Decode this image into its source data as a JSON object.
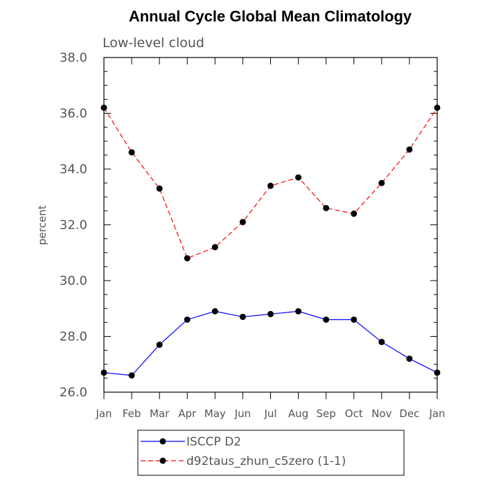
{
  "chart_data": {
    "type": "line",
    "title": "Annual Cycle Global Mean Climatology",
    "subtitle": "Low-level cloud",
    "xlabel": "",
    "ylabel": "percent",
    "categories": [
      "Jan",
      "Feb",
      "Mar",
      "Apr",
      "May",
      "Jun",
      "Jul",
      "Aug",
      "Sep",
      "Oct",
      "Nov",
      "Dec",
      "Jan"
    ],
    "ylim": [
      26.0,
      38.0
    ],
    "yticks": [
      26.0,
      28.0,
      30.0,
      32.0,
      34.0,
      36.0,
      38.0
    ],
    "ytick_labels": [
      "26.0",
      "28.0",
      "30.0",
      "32.0",
      "34.0",
      "36.0",
      "38.0"
    ],
    "grid": false,
    "legend_position": "bottom",
    "series": [
      {
        "name": "ISCCP D2",
        "color": "#0000ff",
        "line_style": "solid",
        "marker": "filled-circle",
        "values": [
          26.7,
          26.6,
          27.7,
          28.6,
          28.9,
          28.7,
          28.8,
          28.9,
          28.6,
          28.6,
          27.8,
          27.2,
          26.7
        ]
      },
      {
        "name": "d92taus_zhun_c5zero (1-1)",
        "color": "#ff0000",
        "line_style": "dashed",
        "marker": "filled-circle",
        "values": [
          36.2,
          34.6,
          33.3,
          30.8,
          31.2,
          32.1,
          33.4,
          33.7,
          32.6,
          32.4,
          33.5,
          34.7,
          36.2
        ]
      }
    ]
  }
}
